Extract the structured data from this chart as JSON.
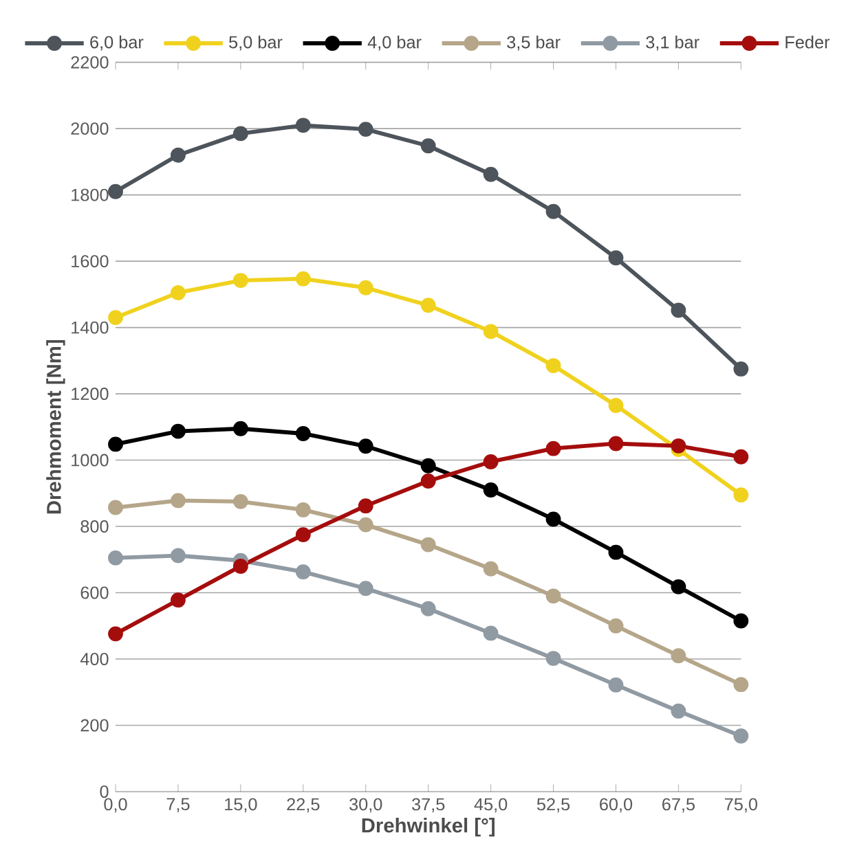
{
  "chart_data": {
    "type": "line",
    "xlabel": "Drehwinkel [°]",
    "ylabel": "Drehmoment [Nm]",
    "categories": [
      "0,0",
      "7,5",
      "15,0",
      "22,5",
      "30,0",
      "37,5",
      "45,0",
      "52,5",
      "60,0",
      "67,5",
      "75,0"
    ],
    "ylim": [
      0,
      2200
    ],
    "yticks": [
      0,
      200,
      400,
      600,
      800,
      1000,
      1200,
      1400,
      1600,
      1800,
      2000,
      2200
    ],
    "grid": "y",
    "legend": "top",
    "marker": "circle",
    "line_style": "solid",
    "series": [
      {
        "name": "6,0 bar",
        "color": "#4d545b",
        "values": [
          1810,
          1920,
          1985,
          2010,
          1998,
          1948,
          1862,
          1750,
          1610,
          1452,
          1275
        ]
      },
      {
        "name": "5,0 bar",
        "color": "#f0d21e",
        "values": [
          1430,
          1505,
          1542,
          1547,
          1520,
          1467,
          1388,
          1285,
          1165,
          1032,
          895
        ]
      },
      {
        "name": "4,0 bar",
        "color": "#000000",
        "values": [
          1048,
          1087,
          1095,
          1080,
          1042,
          983,
          910,
          822,
          722,
          618,
          515
        ]
      },
      {
        "name": "3,5 bar",
        "color": "#b5a68a",
        "values": [
          857,
          878,
          875,
          850,
          805,
          745,
          672,
          590,
          500,
          410,
          323
        ]
      },
      {
        "name": "3,1 bar",
        "color": "#909aa3",
        "values": [
          705,
          712,
          697,
          663,
          613,
          552,
          478,
          402,
          322,
          243,
          168
        ]
      },
      {
        "name": "Feder",
        "color": "#a50d0d",
        "values": [
          476,
          578,
          680,
          775,
          862,
          937,
          995,
          1035,
          1050,
          1043,
          1010
        ]
      }
    ]
  }
}
